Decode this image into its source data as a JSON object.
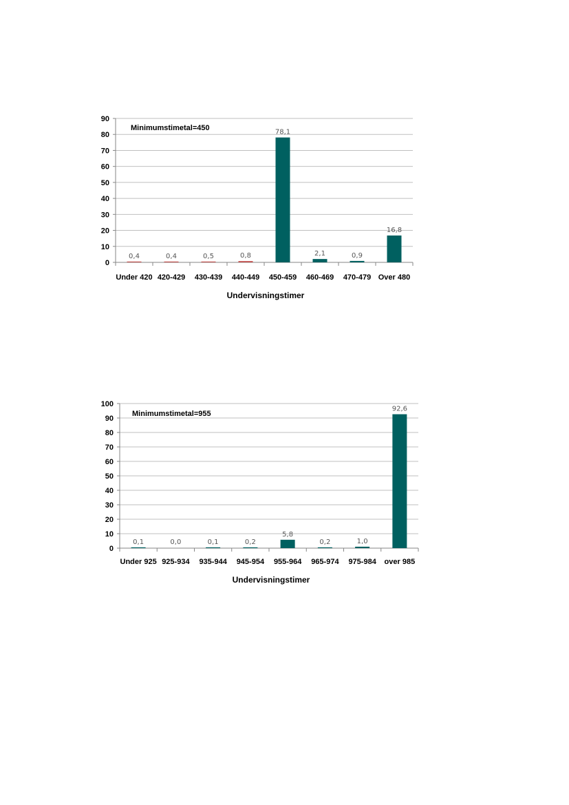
{
  "chart_data": [
    {
      "type": "bar",
      "annotation": "Minimumstimetal=450",
      "xlabel": "Undervisningstimer",
      "ylabel": "",
      "ylim": [
        0,
        90
      ],
      "yticks": [
        0,
        10,
        20,
        30,
        40,
        50,
        60,
        70,
        80,
        90
      ],
      "categories": [
        "Under 420",
        "420-429",
        "430-439",
        "440-449",
        "450-459",
        "460-469",
        "470-479",
        "Over 480"
      ],
      "values": [
        0.4,
        0.4,
        0.5,
        0.8,
        78.1,
        2.1,
        0.9,
        16.8
      ],
      "data_labels": [
        "0,4",
        "0,4",
        "0,5",
        "0,8",
        "78,1",
        "2,1",
        "0,9",
        "16,8"
      ],
      "bar_colors": [
        "#c0504d",
        "#c0504d",
        "#c0504d",
        "#c0504d",
        "#006060",
        "#006060",
        "#006060",
        "#006060"
      ],
      "grid": true
    },
    {
      "type": "bar",
      "annotation": "Minimumstimetal=955",
      "xlabel": "Undervisningstimer",
      "ylabel": "",
      "ylim": [
        0,
        100
      ],
      "yticks": [
        0,
        10,
        20,
        30,
        40,
        50,
        60,
        70,
        80,
        90,
        100
      ],
      "categories": [
        "Under 925",
        "925-934",
        "935-944",
        "945-954",
        "955-964",
        "965-974",
        "975-984",
        "over 985"
      ],
      "values": [
        0.1,
        0.0,
        0.1,
        0.2,
        5.8,
        0.2,
        1.0,
        92.6
      ],
      "data_labels": [
        "0,1",
        "0,0",
        "0,1",
        "0,2",
        "5,8",
        "0,2",
        "1,0",
        "92,6"
      ],
      "bar_colors": [
        "#006060",
        "#006060",
        "#006060",
        "#006060",
        "#006060",
        "#006060",
        "#006060",
        "#006060"
      ],
      "grid": true
    }
  ],
  "colors": {
    "grid": "#bfbfbf",
    "axis": "#868686",
    "teal": "#006060",
    "red": "#c0504d"
  }
}
